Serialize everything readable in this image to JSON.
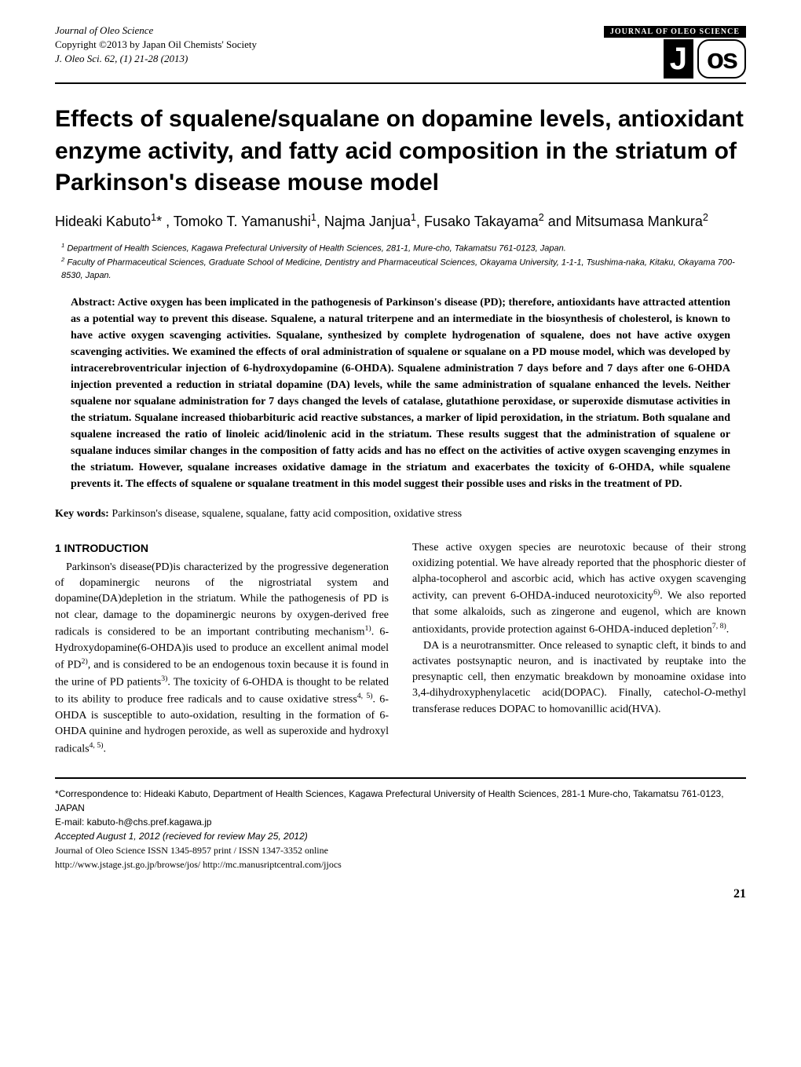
{
  "header": {
    "journal_name": "Journal of Oleo Science",
    "copyright": "Copyright ©2013 by Japan Oil Chemists' Society",
    "citation": "J. Oleo Sci. 62, (1) 21-28 (2013)",
    "logo_banner": "JOURNAL OF OLEO SCIENCE",
    "logo_j": "J",
    "logo_os": "os"
  },
  "title": "Effects of squalene/squalane on dopamine levels, antioxidant enzyme activity, and fatty acid composition in the striatum of Parkinson's disease mouse model",
  "authors": "Hideaki Kabuto1* , Tomoko T. Yamanushi1, Najma Janjua1, Fusako Takayama2 and Mitsumasa Mankura2",
  "affiliations": {
    "aff1": "1 Department of Health Sciences, Kagawa Prefectural University of Health Sciences, 281-1, Mure-cho, Takamatsu 761-0123, Japan.",
    "aff2": "2 Faculty of Pharmaceutical Sciences, Graduate School of Medicine, Dentistry and Pharmaceutical Sciences, Okayama University, 1-1-1, Tsushima-naka, Kitaku, Okayama 700-8530, Japan."
  },
  "abstract": "Abstract: Active oxygen has been implicated in the pathogenesis of Parkinson's disease (PD); therefore, antioxidants have attracted attention as a potential way to prevent this disease. Squalene, a natural triterpene and an intermediate in the biosynthesis of cholesterol, is known to have active oxygen scavenging activities. Squalane, synthesized by complete hydrogenation of squalene, does not have active oxygen scavenging activities. We examined the effects of oral administration of squalene or squalane on a PD mouse model, which was developed by intracerebroventricular injection of 6-hydroxydopamine (6-OHDA). Squalene administration 7 days before and 7 days after one 6-OHDA injection prevented a reduction in striatal dopamine (DA) levels, while the same administration of squalane enhanced the levels. Neither squalene nor squalane administration for 7 days changed the levels of catalase, glutathione peroxidase, or superoxide dismutase activities in the striatum. Squalane increased thiobarbituric acid reactive substances, a marker of lipid peroxidation, in the striatum. Both squalane and squalene increased the ratio of linoleic acid/linolenic acid in the striatum. These results suggest that the administration of squalene or squalane induces similar changes in the composition of fatty acids and has no effect on the activities of active oxygen scavenging enzymes in the striatum. However, squalane increases oxidative damage in the striatum and exacerbates the toxicity of 6-OHDA, while squalene prevents it. The effects of squalene or squalane treatment in this model suggest their possible uses and risks in the treatment of PD.",
  "keywords": {
    "label": "Key words:",
    "text": " Parkinson's disease, squalene, squalane, fatty acid composition, oxidative stress"
  },
  "section1_title": "1 INTRODUCTION",
  "body": {
    "col1_p1": "Parkinson's disease(PD)is characterized by the progressive degeneration of dopaminergic neurons of the nigrostriatal system and dopamine(DA)depletion in the striatum. While the pathogenesis of PD is not clear, damage to the dopaminergic neurons by oxygen-derived free radicals is considered to be an important contributing mechanism1). 6-Hydroxydopamine(6-OHDA)is used to produce an excellent animal model of PD2), and is considered to be an endogenous toxin because it is found in the urine of PD patients3). The toxicity of 6-OHDA is thought to be related to its ability to produce free radicals and to cause oxidative stress4, 5). 6-OHDA is susceptible to auto-oxidation, resulting in the formation of 6-OHDA quinine and hydrogen peroxide, as well as superoxide and hydroxyl radicals4, 5).",
    "col2_p1": "These active oxygen species are neurotoxic because of their strong oxidizing potential. We have already reported that the phosphoric diester of alpha-tocopherol and ascorbic acid, which has active oxygen scavenging activity, can prevent 6-OHDA-induced neurotoxicity6). We also reported that some alkaloids, such as zingerone and eugenol, which are known antioxidants, provide protection against 6-OHDA-induced depletion7, 8).",
    "col2_p2": "DA is a neurotransmitter. Once released to synaptic cleft, it binds to and activates postsynaptic neuron, and is inactivated by reuptake into the presynaptic cell, then enzymatic breakdown by monoamine oxidase into 3,4-dihydroxyphenylacetic acid(DOPAC). Finally, catechol-O-methyl transferase reduces DOPAC to homovanillic acid(HVA)."
  },
  "footer": {
    "correspondence": "*Correspondence to: Hideaki Kabuto, Department of Health Sciences, Kagawa Prefectural University of Health Sciences, 281-1 Mure-cho, Takamatsu 761-0123, JAPAN",
    "email": "E-mail: kabuto-h@chs.pref.kagawa.jp",
    "accepted": "Accepted August 1, 2012 (recieved for review May 25, 2012)",
    "issn": "Journal of Oleo Science ISSN 1345-8957 print / ISSN 1347-3352 online",
    "urls": "http://www.jstage.jst.go.jp/browse/jos/        http://mc.manusriptcentral.com/jjocs"
  },
  "page_number": "21"
}
